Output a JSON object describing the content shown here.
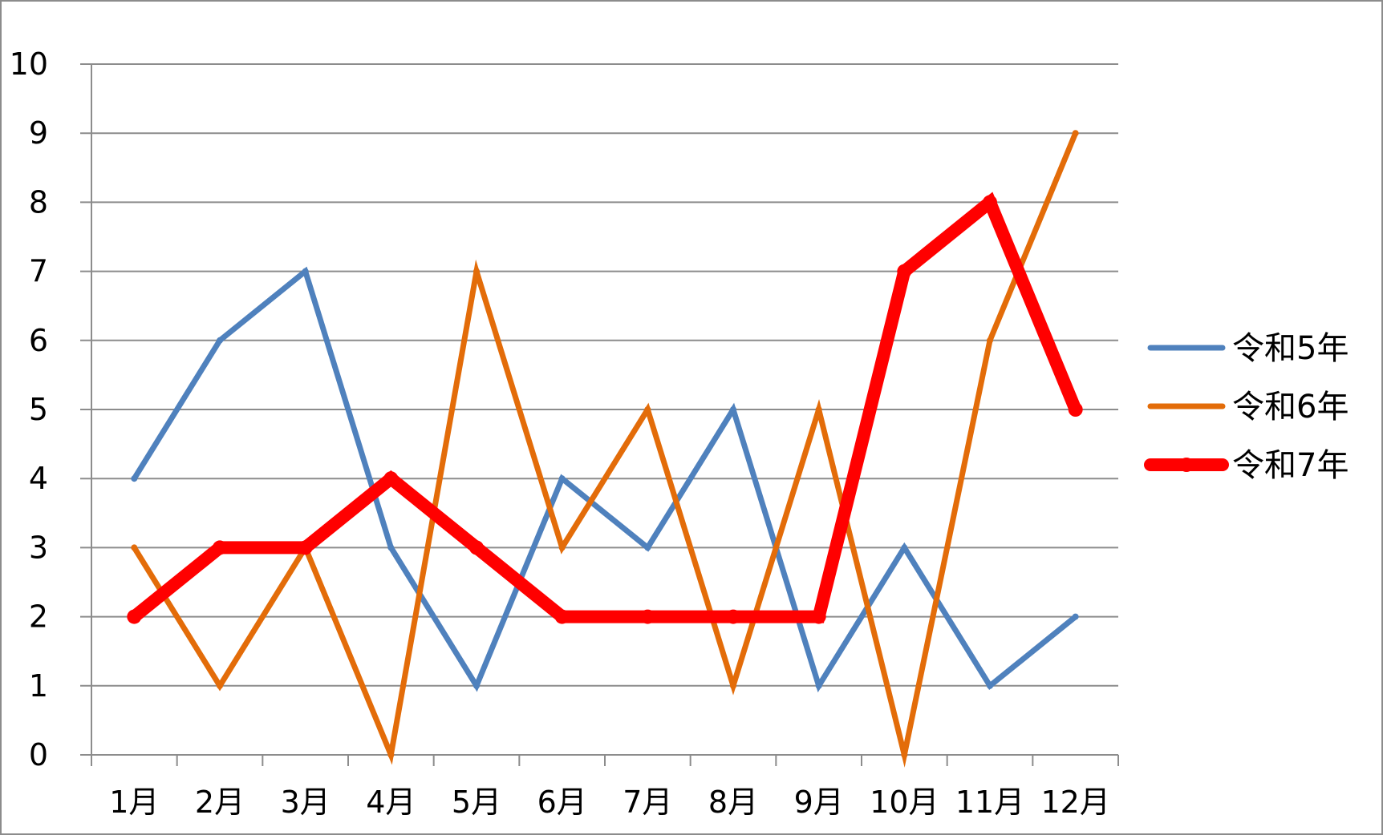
{
  "chart_data": {
    "type": "line",
    "title": "",
    "xlabel": "",
    "ylabel": "",
    "categories": [
      "1月",
      "2月",
      "3月",
      "4月",
      "5月",
      "6月",
      "7月",
      "8月",
      "9月",
      "10月",
      "11月",
      "12月"
    ],
    "ylim": [
      0,
      10
    ],
    "yticks": [
      "0",
      "1",
      "2",
      "3",
      "4",
      "5",
      "6",
      "7",
      "8",
      "9",
      "10"
    ],
    "grid": true,
    "legend_position": "right",
    "series": [
      {
        "name": "令和5年",
        "color": "#4f81bd",
        "values": [
          4,
          6,
          7,
          3,
          1,
          4,
          3,
          5,
          1,
          3,
          1,
          2
        ]
      },
      {
        "name": "令和6年",
        "color": "#e36c09",
        "values": [
          3,
          1,
          3,
          0,
          7,
          3,
          5,
          1,
          5,
          0,
          6,
          9
        ]
      },
      {
        "name": "令和7年",
        "color": "#ff0000",
        "values": [
          2,
          3,
          3,
          4,
          3,
          2,
          2,
          2,
          2,
          7,
          8,
          5
        ]
      }
    ]
  }
}
